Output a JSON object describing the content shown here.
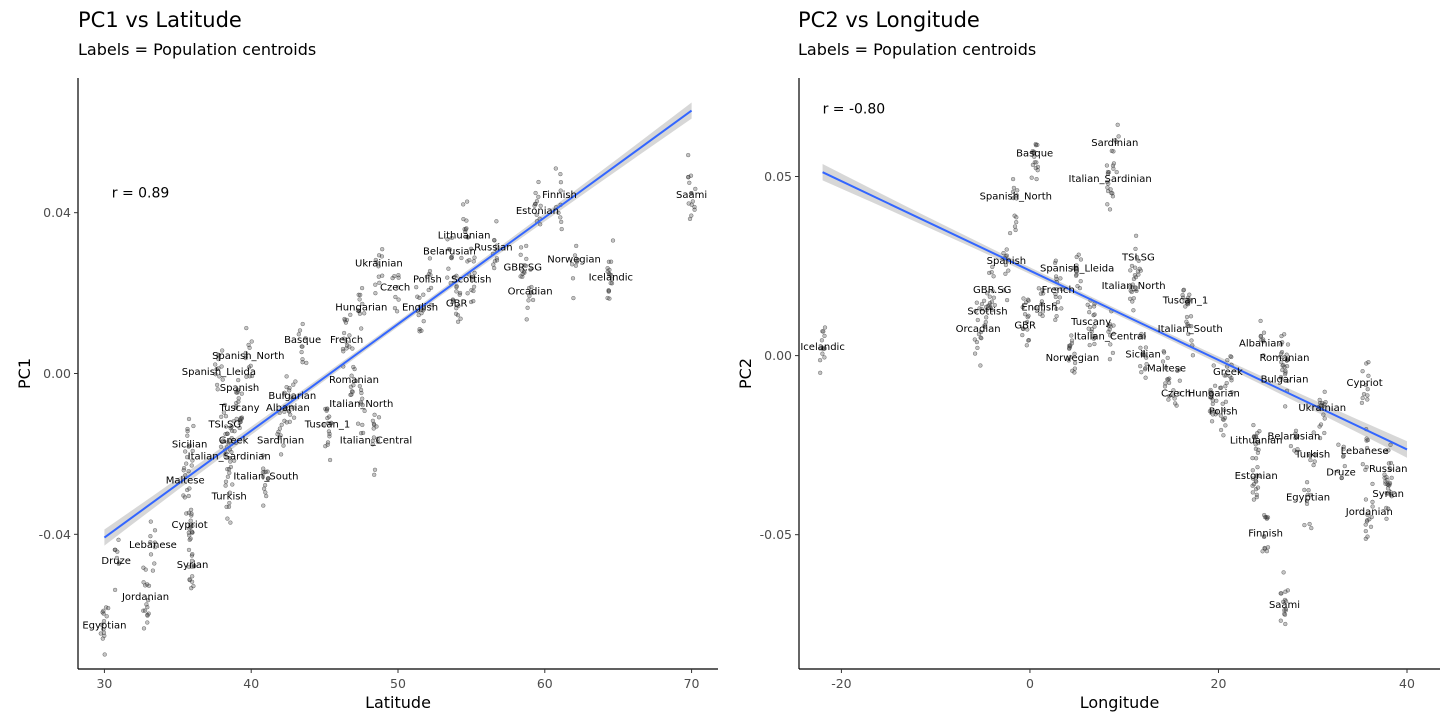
{
  "chart_data": [
    {
      "type": "scatter",
      "title": "PC1 vs Latitude",
      "subtitle": "Labels = Population centroids",
      "xlabel": "Latitude",
      "ylabel": "PC1",
      "xlim": [
        28.2,
        71.8
      ],
      "ylim": [
        -0.0735,
        0.0735
      ],
      "xticks": [
        30,
        40,
        50,
        60,
        70
      ],
      "yticks": [
        -0.04,
        0.0,
        0.04
      ],
      "ytick_labels": [
        "-0.04",
        "0.00",
        "0.04"
      ],
      "annotation": "r = 0.89",
      "annotation_pos": [
        30.5,
        0.045
      ],
      "fit": {
        "x": [
          30,
          70
        ],
        "y": [
          -0.0408,
          0.0654
        ],
        "ci_halfwidth_ends": 0.002,
        "ci_halfwidth_mid": 0.0007
      },
      "labels": [
        {
          "text": "Saami",
          "x": 70.0,
          "y": 0.0445
        },
        {
          "text": "Finnish",
          "x": 61.0,
          "y": 0.0445
        },
        {
          "text": "Estonian",
          "x": 59.5,
          "y": 0.0405
        },
        {
          "text": "Lithuanian",
          "x": 54.5,
          "y": 0.0345
        },
        {
          "text": "Belarusian",
          "x": 53.5,
          "y": 0.0305
        },
        {
          "text": "Russian",
          "x": 56.5,
          "y": 0.0315
        },
        {
          "text": "Norwegian",
          "x": 62.0,
          "y": 0.0285
        },
        {
          "text": "Ukrainian",
          "x": 48.7,
          "y": 0.0275
        },
        {
          "text": "GBR.SG",
          "x": 58.5,
          "y": 0.0265
        },
        {
          "text": "Icelandic",
          "x": 64.5,
          "y": 0.024
        },
        {
          "text": "Polish",
          "x": 52.0,
          "y": 0.0235
        },
        {
          "text": "Scottish",
          "x": 55.0,
          "y": 0.0235
        },
        {
          "text": "Czech",
          "x": 49.8,
          "y": 0.0215
        },
        {
          "text": "Orcadian",
          "x": 59.0,
          "y": 0.0205
        },
        {
          "text": "GBR",
          "x": 54.0,
          "y": 0.0175
        },
        {
          "text": "English",
          "x": 51.5,
          "y": 0.0165
        },
        {
          "text": "Hungarian",
          "x": 47.5,
          "y": 0.0165
        },
        {
          "text": "French",
          "x": 46.5,
          "y": 0.0085
        },
        {
          "text": "Basque",
          "x": 43.5,
          "y": 0.0085
        },
        {
          "text": "Spanish_North",
          "x": 39.8,
          "y": 0.0045
        },
        {
          "text": "Spanish_Lleida",
          "x": 37.8,
          "y": 0.0005
        },
        {
          "text": "Romanian",
          "x": 47.0,
          "y": -0.0015
        },
        {
          "text": "Spanish",
          "x": 39.2,
          "y": -0.0035
        },
        {
          "text": "Bulgarian",
          "x": 42.8,
          "y": -0.0055
        },
        {
          "text": "Tuscany",
          "x": 39.2,
          "y": -0.0085
        },
        {
          "text": "Albanian",
          "x": 42.5,
          "y": -0.0085
        },
        {
          "text": "Italian_North",
          "x": 47.5,
          "y": -0.0075
        },
        {
          "text": "TSI.SG",
          "x": 38.2,
          "y": -0.0125
        },
        {
          "text": "Tuscan_1",
          "x": 45.2,
          "y": -0.0125
        },
        {
          "text": "Greek",
          "x": 38.8,
          "y": -0.0165
        },
        {
          "text": "Sardinian",
          "x": 42.0,
          "y": -0.0165
        },
        {
          "text": "Italian_Central",
          "x": 48.5,
          "y": -0.0165
        },
        {
          "text": "Sicilian",
          "x": 35.8,
          "y": -0.0175
        },
        {
          "text": "Italian_Sardinian",
          "x": 38.5,
          "y": -0.0205
        },
        {
          "text": "Italian_South",
          "x": 41.0,
          "y": -0.0255
        },
        {
          "text": "Maltese",
          "x": 35.5,
          "y": -0.0265
        },
        {
          "text": "Turkish",
          "x": 38.5,
          "y": -0.0305
        },
        {
          "text": "Cypriot",
          "x": 35.8,
          "y": -0.0375
        },
        {
          "text": "Lebanese",
          "x": 33.3,
          "y": -0.0425
        },
        {
          "text": "Druze",
          "x": 30.8,
          "y": -0.0465
        },
        {
          "text": "Syrian",
          "x": 36.0,
          "y": -0.0475
        },
        {
          "text": "Jordanian",
          "x": 32.8,
          "y": -0.0555
        },
        {
          "text": "Egyptian",
          "x": 30.0,
          "y": -0.0625
        }
      ]
    },
    {
      "type": "scatter",
      "title": "PC2 vs Longitude",
      "subtitle": "Labels = Population centroids",
      "xlabel": "Longitude",
      "ylabel": "PC2",
      "xlim": [
        -24.5,
        43.5
      ],
      "ylim": [
        -0.0875,
        0.0775
      ],
      "xticks": [
        -20,
        0,
        20,
        40
      ],
      "yticks": [
        -0.05,
        0.0,
        0.05
      ],
      "ytick_labels": [
        "-0.05",
        "0.00",
        "0.05"
      ],
      "annotation": "r = -0.80",
      "annotation_pos": [
        -22,
        0.069
      ],
      "fit": {
        "x": [
          -22,
          40
        ],
        "y": [
          0.0512,
          -0.0262
        ],
        "ci_halfwidth_ends": 0.0023,
        "ci_halfwidth_mid": 0.0008
      },
      "labels": [
        {
          "text": "Sardinian",
          "x": 9.0,
          "y": 0.0595
        },
        {
          "text": "Basque",
          "x": 0.5,
          "y": 0.0565
        },
        {
          "text": "Italian_Sardinian",
          "x": 8.5,
          "y": 0.0495
        },
        {
          "text": "Spanish_North",
          "x": -1.5,
          "y": 0.0445
        },
        {
          "text": "TSI.SG",
          "x": 11.5,
          "y": 0.0275
        },
        {
          "text": "Spanish",
          "x": -2.5,
          "y": 0.0265
        },
        {
          "text": "Spanish_Lleida",
          "x": 5.0,
          "y": 0.0245
        },
        {
          "text": "Italian_North",
          "x": 11.0,
          "y": 0.0195
        },
        {
          "text": "GBR.SG",
          "x": -4.0,
          "y": 0.0185
        },
        {
          "text": "French",
          "x": 3.0,
          "y": 0.0185
        },
        {
          "text": "Tuscan_1",
          "x": 16.5,
          "y": 0.0155
        },
        {
          "text": "Scottish",
          "x": -4.5,
          "y": 0.0125
        },
        {
          "text": "English",
          "x": 1.0,
          "y": 0.0135
        },
        {
          "text": "Tuscany",
          "x": 6.5,
          "y": 0.0095
        },
        {
          "text": "GBR",
          "x": -0.5,
          "y": 0.0085
        },
        {
          "text": "Orcadian",
          "x": -5.5,
          "y": 0.0075
        },
        {
          "text": "Italian_South",
          "x": 17.0,
          "y": 0.0075
        },
        {
          "text": "Italian_Central",
          "x": 8.5,
          "y": 0.0055
        },
        {
          "text": "Albanian",
          "x": 24.5,
          "y": 0.0035
        },
        {
          "text": "Icelandic",
          "x": -22.0,
          "y": 0.0025
        },
        {
          "text": "Sicilian",
          "x": 12.0,
          "y": 0.0005
        },
        {
          "text": "Norwegian",
          "x": 4.5,
          "y": -0.0005
        },
        {
          "text": "Romanian",
          "x": 27.0,
          "y": -0.0005
        },
        {
          "text": "Maltese",
          "x": 14.5,
          "y": -0.0035
        },
        {
          "text": "Greek",
          "x": 21.0,
          "y": -0.0045
        },
        {
          "text": "Bulgarian",
          "x": 27.0,
          "y": -0.0065
        },
        {
          "text": "Cypriot",
          "x": 35.5,
          "y": -0.0075
        },
        {
          "text": "Czech",
          "x": 15.5,
          "y": -0.0105
        },
        {
          "text": "Hungarian",
          "x": 19.5,
          "y": -0.0105
        },
        {
          "text": "Polish",
          "x": 20.5,
          "y": -0.0155
        },
        {
          "text": "Ukrainian",
          "x": 31.0,
          "y": -0.0145
        },
        {
          "text": "Belarusian",
          "x": 28.0,
          "y": -0.0225
        },
        {
          "text": "Lithuanian",
          "x": 24.0,
          "y": -0.0235
        },
        {
          "text": "Lebanese",
          "x": 35.5,
          "y": -0.0265
        },
        {
          "text": "Turkish",
          "x": 30.0,
          "y": -0.0275
        },
        {
          "text": "Russian",
          "x": 38.0,
          "y": -0.0315
        },
        {
          "text": "Druze",
          "x": 33.0,
          "y": -0.0325
        },
        {
          "text": "Estonian",
          "x": 24.0,
          "y": -0.0335
        },
        {
          "text": "Syrian",
          "x": 38.0,
          "y": -0.0385
        },
        {
          "text": "Egyptian",
          "x": 29.5,
          "y": -0.0395
        },
        {
          "text": "Jordanian",
          "x": 36.0,
          "y": -0.0435
        },
        {
          "text": "Finnish",
          "x": 25.0,
          "y": -0.0495
        },
        {
          "text": "Saami",
          "x": 27.0,
          "y": -0.0695
        }
      ]
    }
  ]
}
